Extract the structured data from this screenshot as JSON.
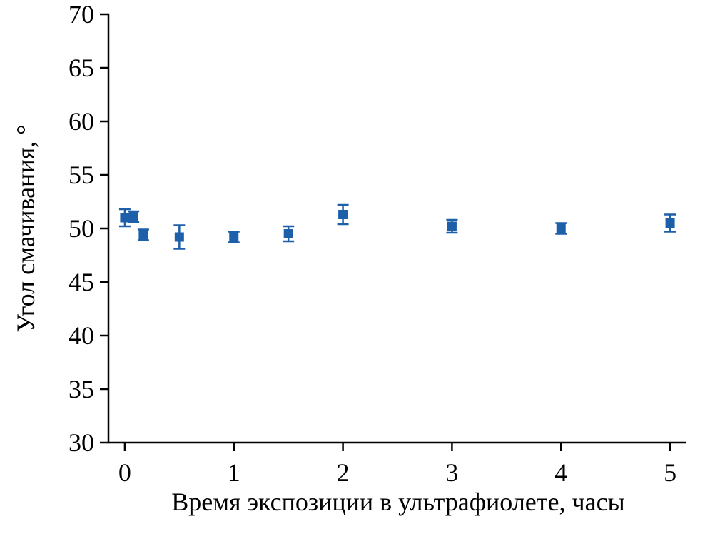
{
  "chart_data": {
    "type": "scatter",
    "title": "",
    "xlabel": "Время экспозиции в ультрафиолете, часы",
    "ylabel": "Угол смачивания, °",
    "xlim": [
      -0.15,
      5.15
    ],
    "ylim": [
      30,
      70
    ],
    "xticks": [
      0,
      1,
      2,
      3,
      4,
      5
    ],
    "yticks": [
      30,
      35,
      40,
      45,
      50,
      55,
      60,
      65,
      70
    ],
    "grid": false,
    "legend_position": "none",
    "marker": "square",
    "marker_color": "#1e5faa",
    "axis_color": "#000000",
    "series": [
      {
        "name": "contact-angle-vs-uv-exposure",
        "points": [
          {
            "x": 0.0,
            "y": 51.0,
            "yerr": 0.8
          },
          {
            "x": 0.08,
            "y": 51.1,
            "yerr": 0.5
          },
          {
            "x": 0.17,
            "y": 49.4,
            "yerr": 0.5
          },
          {
            "x": 0.5,
            "y": 49.2,
            "yerr": 1.1
          },
          {
            "x": 1.0,
            "y": 49.2,
            "yerr": 0.5
          },
          {
            "x": 1.5,
            "y": 49.5,
            "yerr": 0.7
          },
          {
            "x": 2.0,
            "y": 51.3,
            "yerr": 0.9
          },
          {
            "x": 3.0,
            "y": 50.2,
            "yerr": 0.6
          },
          {
            "x": 4.0,
            "y": 50.0,
            "yerr": 0.5
          },
          {
            "x": 5.0,
            "y": 50.5,
            "yerr": 0.8
          }
        ]
      }
    ]
  }
}
